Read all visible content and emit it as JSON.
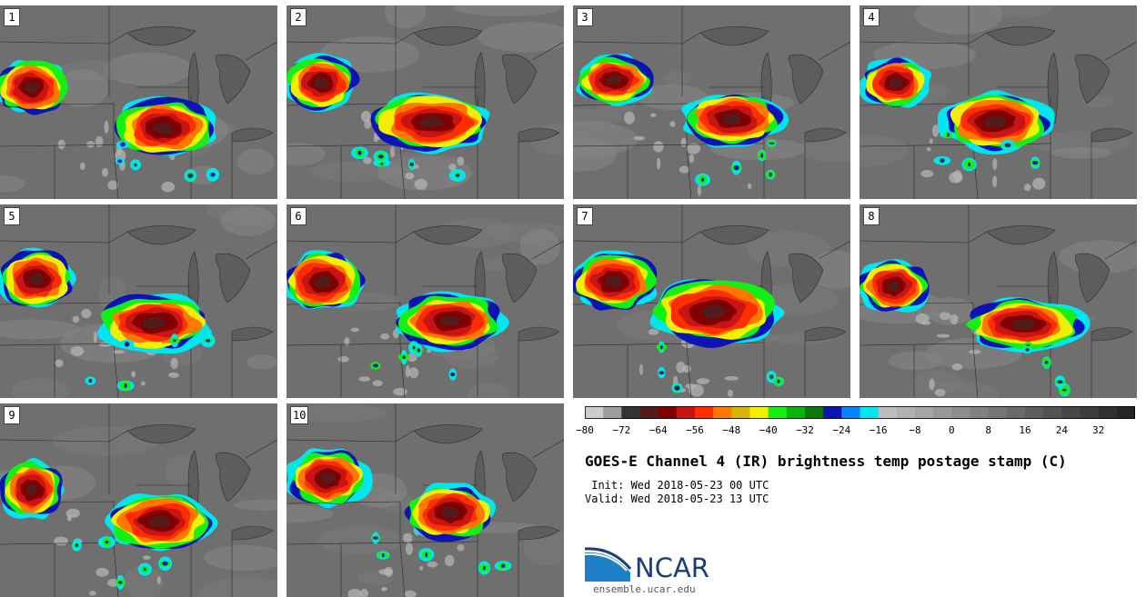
{
  "panels": [
    {
      "label": "1"
    },
    {
      "label": "2"
    },
    {
      "label": "3"
    },
    {
      "label": "4"
    },
    {
      "label": "5"
    },
    {
      "label": "6"
    },
    {
      "label": "7"
    },
    {
      "label": "8"
    },
    {
      "label": "9"
    },
    {
      "label": "10"
    }
  ],
  "colorbar": {
    "colors": [
      "#cccccc",
      "#9e9e9e",
      "#343434",
      "#521c1c",
      "#800000",
      "#c81414",
      "#ff2e00",
      "#ff7800",
      "#d6b400",
      "#f0f000",
      "#14f014",
      "#0ab40a",
      "#0a780a",
      "#0a14b4",
      "#0a82ff",
      "#00e6f0",
      "#bdbdbd",
      "#b1b1b1",
      "#a5a5a5",
      "#999999",
      "#8d8d8d",
      "#818181",
      "#757575",
      "#6a6a6a",
      "#5e5e5e",
      "#535353",
      "#474747",
      "#3c3c3c",
      "#303030",
      "#262626"
    ],
    "ticks": [
      "−80",
      "−72",
      "−64",
      "−56",
      "−48",
      "−40",
      "−32",
      "−24",
      "−16",
      "−8",
      "0",
      "8",
      "16",
      "24",
      "32"
    ]
  },
  "title": "GOES-E Channel 4 (IR) brightness temp postage stamp (C)",
  "init": " Init: Wed 2018-05-23 00 UTC",
  "valid": "Valid: Wed 2018-05-23 13 UTC",
  "logo": {
    "word": "NCAR",
    "url": "ensemble.ucar.edu",
    "brand_color": "#1a3d7c",
    "accent_color": "#1e7fc7"
  }
}
